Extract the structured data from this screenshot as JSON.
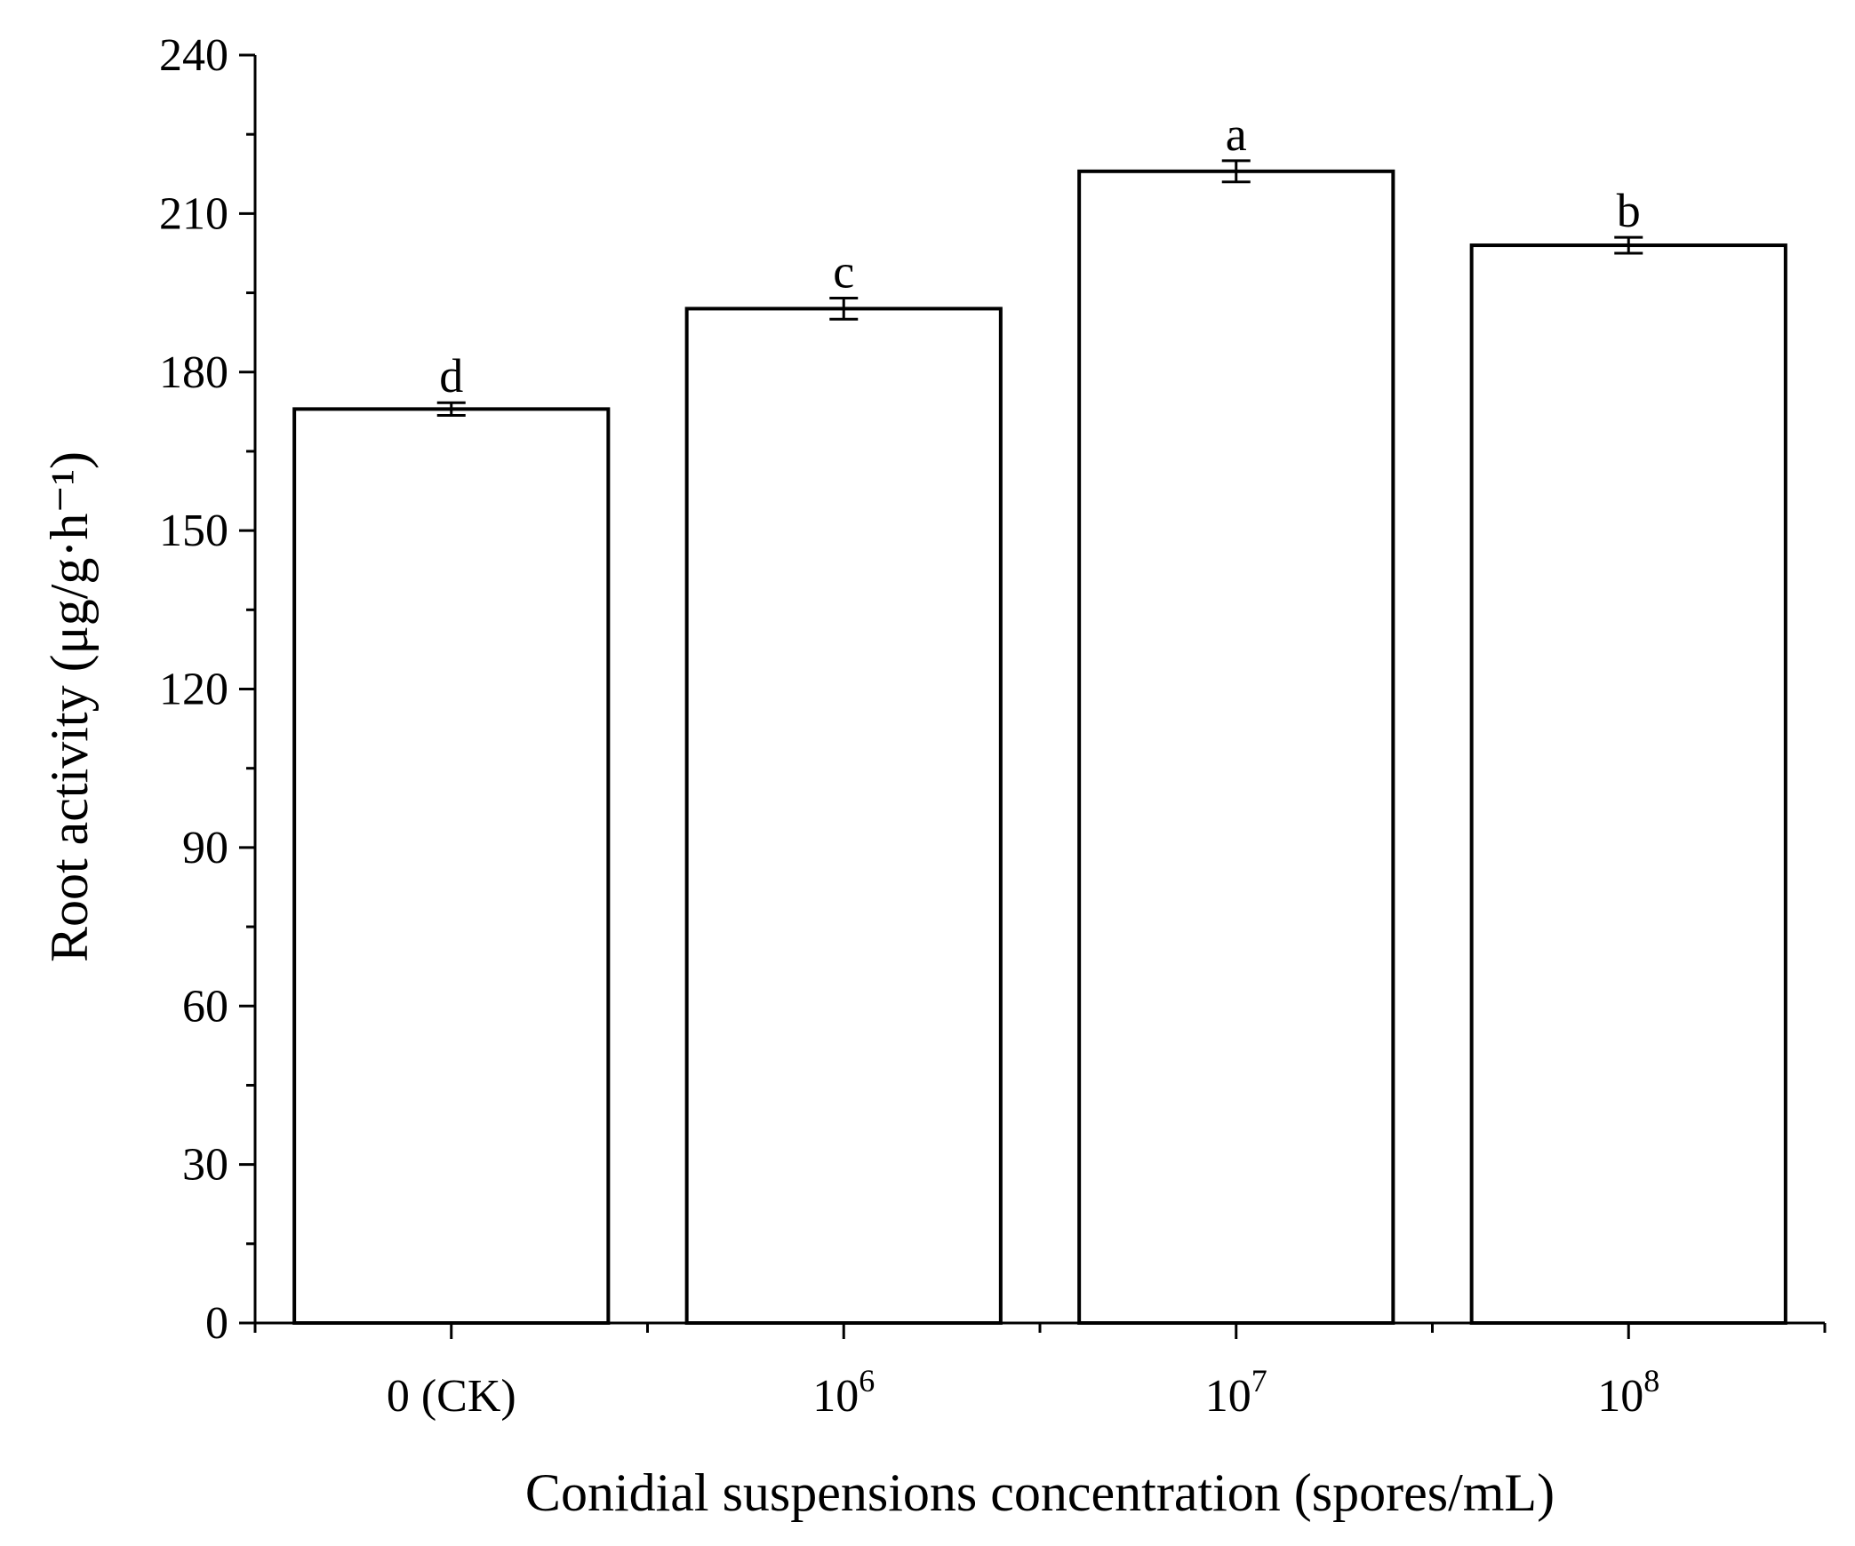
{
  "chart_data": {
    "type": "bar",
    "xlabel": "Conidial suspensions concentration (spores/mL)",
    "ylabel": "Root activity (μg/g·h⁻¹)",
    "ylim": [
      0,
      240
    ],
    "yticks": [
      "0",
      "30",
      "60",
      "90",
      "120",
      "150",
      "180",
      "210",
      "240"
    ],
    "categories": [
      {
        "base": "0 (CK)",
        "sup": ""
      },
      {
        "base": "10",
        "sup": "6"
      },
      {
        "base": "10",
        "sup": "7"
      },
      {
        "base": "10",
        "sup": "8"
      }
    ],
    "values": [
      173,
      192,
      218,
      204
    ],
    "errors": [
      1.2,
      2.0,
      2.0,
      1.5
    ],
    "letters": [
      "d",
      "c",
      "a",
      "b"
    ],
    "grid": false,
    "colors": {
      "bar_fill": "#ffffff",
      "bar_edge": "#000000"
    }
  }
}
